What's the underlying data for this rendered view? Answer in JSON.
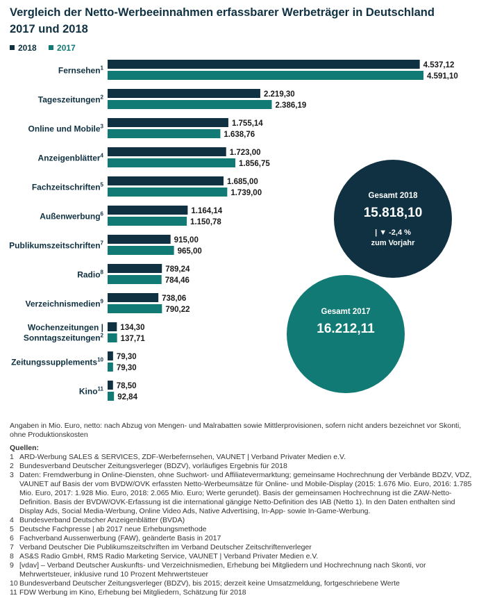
{
  "title_line1": "Vergleich der Netto-Werbeeinnahmen erfassbarer Werbeträger in Deutschland",
  "title_line2": "2017 und 2018",
  "colors": {
    "y2018": "#0f3142",
    "y2017": "#117a75",
    "text": "#0f3142"
  },
  "chart_data": {
    "type": "bar",
    "orientation": "horizontal",
    "categories": [
      {
        "label": "Fernsehen",
        "sup": "1"
      },
      {
        "label": "Tageszeitungen",
        "sup": "2"
      },
      {
        "label": "Online und Mobile",
        "sup": "3"
      },
      {
        "label": "Anzeigenblätter",
        "sup": "4"
      },
      {
        "label": "Fachzeitschriften",
        "sup": "5"
      },
      {
        "label": "Außenwerbung",
        "sup": "6"
      },
      {
        "label": "Publikumszeitschriften",
        "sup": "7"
      },
      {
        "label": "Radio",
        "sup": "8"
      },
      {
        "label": "Verzeichnismedien",
        "sup": "9"
      },
      {
        "label": "Wochenzeitungen |",
        "label2": "Sonntagszeitungen",
        "sup": "2"
      },
      {
        "label": "Zeitungssupplements",
        "sup": "10"
      },
      {
        "label": "Kino",
        "sup": "11"
      }
    ],
    "series": [
      {
        "name": "2018",
        "values": [
          4537.12,
          2219.3,
          1755.14,
          1723.0,
          1685.0,
          1164.14,
          915.0,
          789.24,
          738.06,
          134.3,
          79.3,
          78.5
        ],
        "labels": [
          "4.537,12",
          "2.219,30",
          "1.755,14",
          "1.723,00",
          "1.685,00",
          "1.164,14",
          "915,00",
          "789,24",
          "738,06",
          "134,30",
          "79,30",
          "78,50"
        ]
      },
      {
        "name": "2017",
        "values": [
          4591.1,
          2386.19,
          1638.76,
          1856.75,
          1739.0,
          1150.78,
          965.0,
          784.46,
          790.22,
          137.71,
          79.3,
          92.84
        ],
        "labels": [
          "4.591,10",
          "2.386,19",
          "1.638,76",
          "1.856,75",
          "1.739,00",
          "1.150,78",
          "965,00",
          "784,46",
          "790,22",
          "137,71",
          "79,30",
          "92,84"
        ]
      }
    ]
  },
  "circles": {
    "c2018": {
      "title": "Gesamt 2018",
      "value": "15.818,10",
      "change": "| ▼ -2,4 %",
      "change2": "zum Vorjahr"
    },
    "c2017": {
      "title": "Gesamt 2017",
      "value": "16.212,11"
    }
  },
  "notes": {
    "intro": "Angaben in Mio. Euro, netto: nach Abzug von Mengen- und Malrabatten sowie Mittlerprovisionen, sofern nicht anders bezeichnet vor Skonti, ohne Produktionskosten",
    "sources_heading": "Quellen:",
    "sources": [
      {
        "n": "1",
        "t": "ARD-Werbung SALES & SERVICES, ZDF-Werbefernsehen, VAUNET | Verband Privater Medien e.V."
      },
      {
        "n": "2",
        "t": "Bundesverband Deutscher Zeitungsverleger (BDZV), vorläufiges Ergebnis für 2018"
      },
      {
        "n": "3",
        "t": "Daten: Fremdwerbung in Online-Diensten, ohne Suchwort- und Affiliatevermarktung; gemeinsame Hochrechnung der Verbände BDZV, VDZ, VAUNET auf Basis der vom BVDW/OVK erfassten Netto-Werbeumsätze für Online- und Mobile-Display (2015: 1.676 Mio. Euro, 2016: 1.785 Mio. Euro, 2017: 1.928 Mio. Euro, 2018: 2.065 Mio. Euro; Werte gerundet). Basis der gemeinsamen Hochrechnung ist die ZAW-Netto-Definition. Basis der BVDW/OVK-Erfassung ist die international gängige Netto-Definition des IAB (Netto 1). In den Daten enthalten sind Display Ads, Social Media-Werbung, Online Video Ads, Native Advertising, In-App- sowie In-Game-Werbung."
      },
      {
        "n": "4",
        "t": "Bundesverband Deutscher Anzeigenblätter (BVDA)"
      },
      {
        "n": "5",
        "t": "Deutsche Fachpresse | ab 2017 neue Erhebungsmethode"
      },
      {
        "n": "6",
        "t": "Fachverband Aussenwerbung (FAW), geänderte Basis in 2017"
      },
      {
        "n": "7",
        "t": "Verband Deutscher Die Publikumszeitschriften im Verband Deutscher Zeitschriftenverleger"
      },
      {
        "n": "8",
        "t": "AS&S Radio GmbH, RMS Radio Marketing Service, VAUNET | Verband Privater Medien e.V."
      },
      {
        "n": "9",
        "t": "[vdav] – Verband Deutscher Auskunfts- und Verzeichnismedien, Erhebung bei Mitgliedern und Hochrechnung nach Skonti, vor Mehrwertsteuer, inklusive rund 10 Prozent Mehrwertsteuer"
      },
      {
        "n": "10",
        "t": "Bundesverband Deutscher Zeitungsverleger (BDZV), bis 2015; derzeit keine Umsatzmeldung, fortgeschriebene Werte"
      },
      {
        "n": "11",
        "t": "FDW Werbung im Kino, Erhebung bei Mitgliedern, Schätzung für 2018"
      }
    ]
  }
}
